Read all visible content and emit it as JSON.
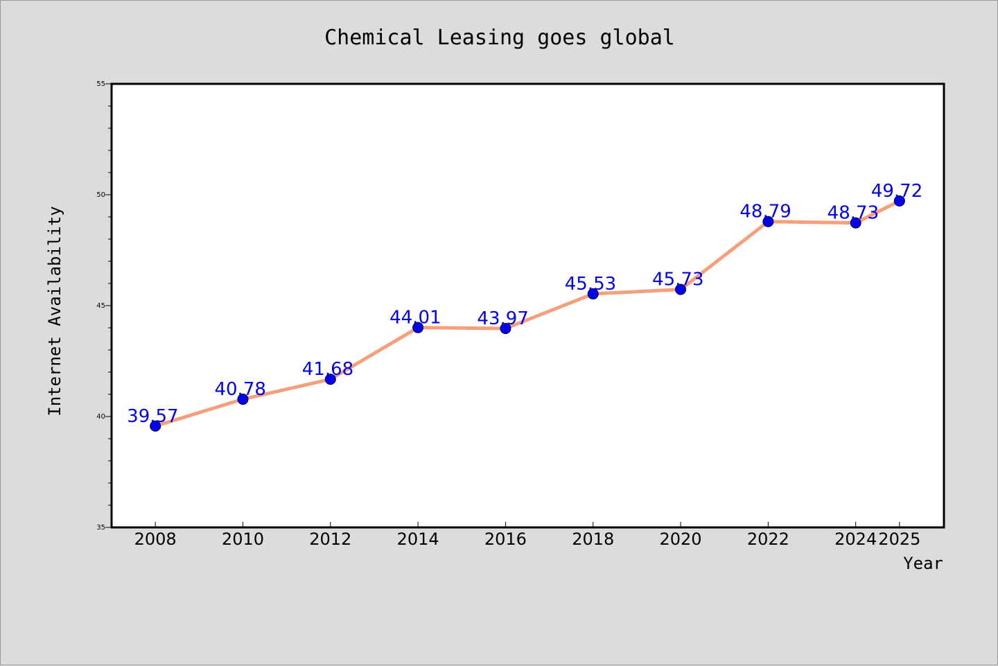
{
  "chart_data": {
    "type": "line",
    "title": "Chemical Leasing goes global",
    "xlabel": "Year",
    "ylabel": "Internet Availability",
    "x": [
      2008,
      2010,
      2012,
      2014,
      2016,
      2018,
      2020,
      2022,
      2024,
      2025
    ],
    "xtick_labels": [
      "2008",
      "2010",
      "2012",
      "2014",
      "2016",
      "2018",
      "2020",
      "2022",
      "2024",
      "2025"
    ],
    "series": [
      {
        "values": [
          39.57,
          40.78,
          41.68,
          44.01,
          43.97,
          45.53,
          45.73,
          48.79,
          48.73,
          49.72
        ],
        "labels": [
          "39.57",
          "40.78",
          "41.68",
          "44.01",
          "43.97",
          "45.53",
          "45.73",
          "48.79",
          "48.73",
          "49.72"
        ]
      }
    ],
    "ylim": [
      35,
      55
    ],
    "yticks": [
      35,
      40,
      45,
      50,
      55
    ],
    "ytick_labels": [
      "35",
      "40",
      "45",
      "50",
      "55"
    ],
    "grid": false,
    "legend": "none",
    "colors": {
      "line": "#f4a07c",
      "marker": "#0000ee",
      "data_label": "#0000ee",
      "background": "#dcdcdc",
      "plot_area": "#ffffff"
    }
  }
}
